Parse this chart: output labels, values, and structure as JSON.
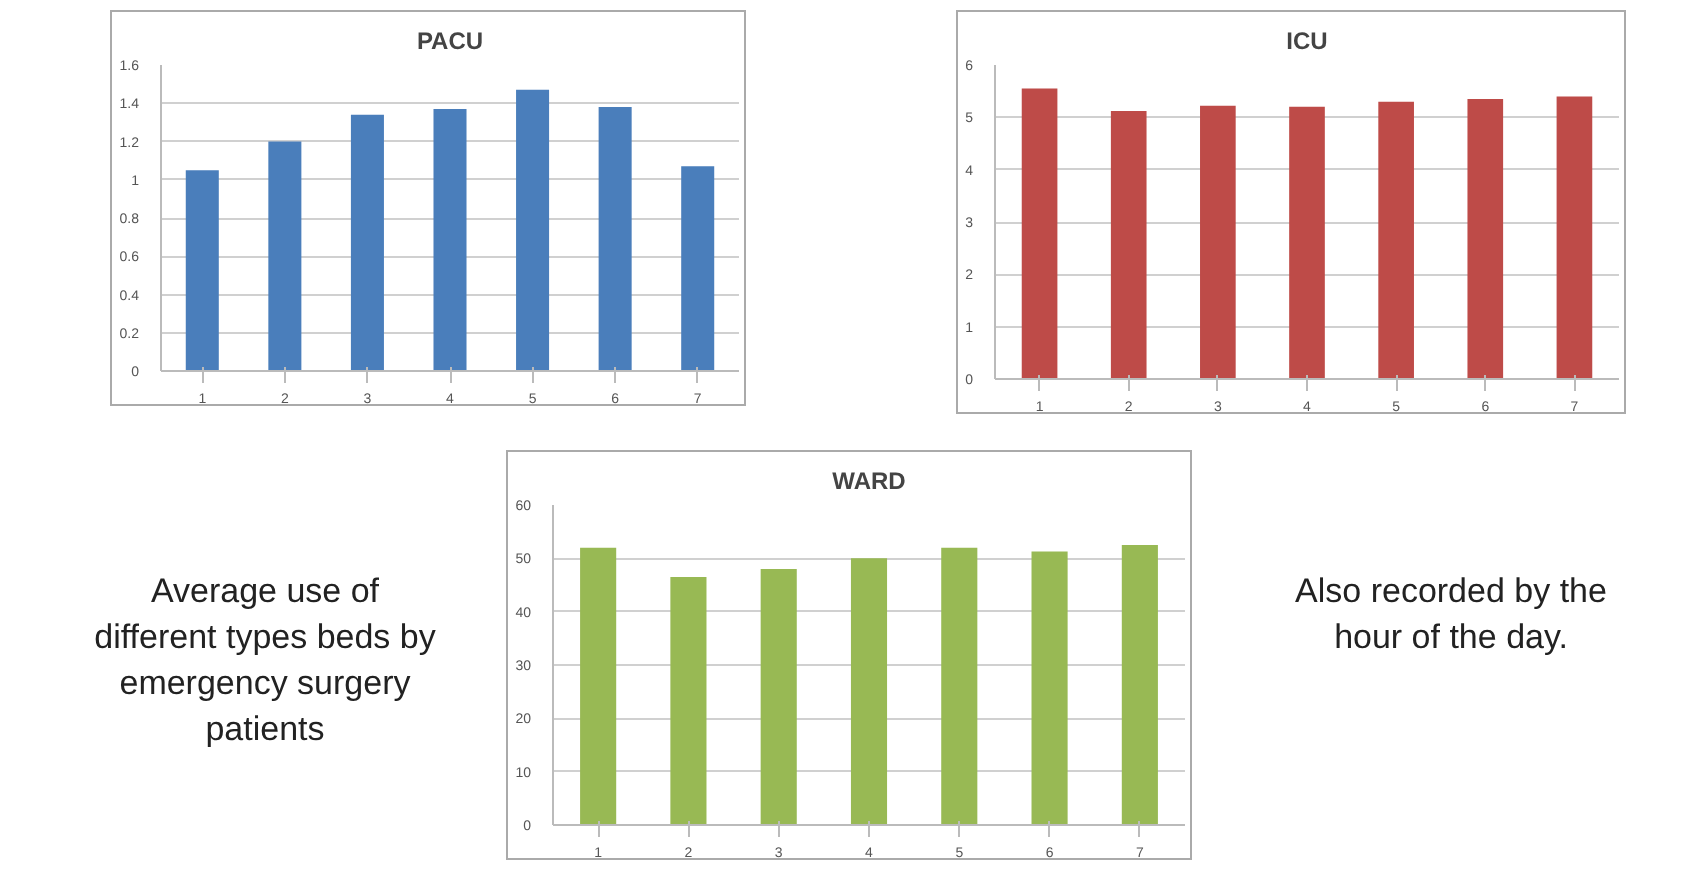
{
  "chart_data": [
    {
      "type": "bar",
      "title": "PACU",
      "categories": [
        "1",
        "2",
        "3",
        "4",
        "5",
        "6",
        "7"
      ],
      "values": [
        1.05,
        1.2,
        1.34,
        1.37,
        1.47,
        1.38,
        1.07
      ],
      "color": "#4a7ebb",
      "ylim": [
        0,
        1.6
      ],
      "yticks": [
        0,
        0.2,
        0.4,
        0.6,
        0.8,
        1,
        1.2,
        1.4,
        1.6
      ],
      "grid": "y"
    },
    {
      "type": "bar",
      "title": "ICU",
      "categories": [
        "1",
        "2",
        "3",
        "4",
        "5",
        "6",
        "7"
      ],
      "values": [
        5.55,
        5.12,
        5.22,
        5.2,
        5.3,
        5.35,
        5.4
      ],
      "color": "#be4b48",
      "ylim": [
        0,
        6
      ],
      "yticks": [
        0,
        1,
        2,
        3,
        4,
        5,
        6
      ],
      "grid": "y"
    },
    {
      "type": "bar",
      "title": "WARD",
      "categories": [
        "1",
        "2",
        "3",
        "4",
        "5",
        "6",
        "7"
      ],
      "values": [
        52,
        46.5,
        48,
        50,
        52,
        51.3,
        52.5
      ],
      "color": "#98b954",
      "ylim": [
        0,
        60
      ],
      "yticks": [
        0,
        10,
        20,
        30,
        40,
        50,
        60
      ],
      "grid": "y"
    },
    {
      "type": "other",
      "annotations": [
        "Average use of different types beds by emergency surgery patients",
        "Also recorded by the hour of the day."
      ]
    }
  ]
}
